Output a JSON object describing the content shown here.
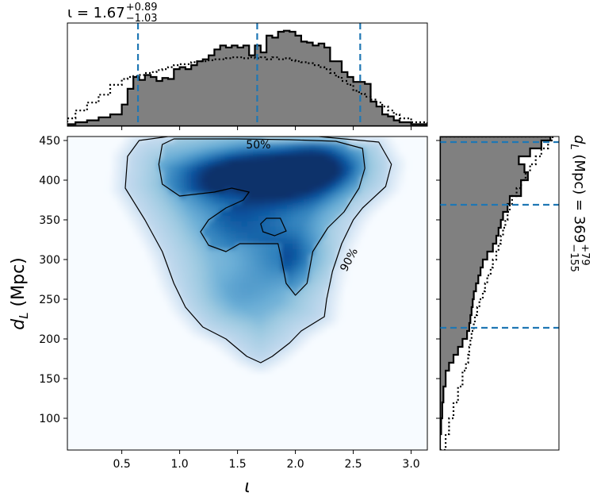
{
  "colors": {
    "hist_fill": "#808080",
    "median_line": "#1f77b4",
    "heat_low": "#f7fbff",
    "heat_high": "#08306b"
  },
  "chart_data": [
    {
      "type": "heatmap",
      "panel": "joint",
      "xlabel": "ι",
      "ylabel": "d_L (Mpc)",
      "xlim": [
        0.03,
        3.14
      ],
      "ylim": [
        60,
        455
      ],
      "xticks": [
        0.5,
        1.0,
        1.5,
        2.0,
        2.5,
        3.0
      ],
      "xtick_labels": [
        "0.5",
        "1.0",
        "1.5",
        "2.0",
        "2.5",
        "3.0"
      ],
      "yticks": [
        100,
        150,
        200,
        250,
        300,
        350,
        400,
        450
      ],
      "ytick_labels": [
        "100",
        "150",
        "200",
        "250",
        "300",
        "350",
        "400",
        "450"
      ],
      "colormap": "Blues",
      "density_peaks": [
        {
          "x": 2.2,
          "y": 422,
          "weight": 1.0
        },
        {
          "x": 1.3,
          "y": 400,
          "weight": 0.7
        },
        {
          "x": 1.65,
          "y": 415,
          "weight": 0.7
        },
        {
          "x": 1.9,
          "y": 395,
          "weight": 0.6
        },
        {
          "x": 1.95,
          "y": 305,
          "weight": 0.55
        },
        {
          "x": 1.5,
          "y": 345,
          "weight": 0.4
        },
        {
          "x": 1.55,
          "y": 260,
          "weight": 0.3
        }
      ],
      "contours": [
        {
          "label": "50%",
          "label_position": [
            1.68,
            445
          ],
          "points": [
            [
              1.1,
              452
            ],
            [
              1.5,
              452
            ],
            [
              1.95,
              451
            ],
            [
              2.35,
              449
            ],
            [
              2.58,
              440
            ],
            [
              2.6,
              415
            ],
            [
              2.55,
              390
            ],
            [
              2.42,
              360
            ],
            [
              2.28,
              340
            ],
            [
              2.15,
              310
            ],
            [
              2.1,
              270
            ],
            [
              2.0,
              255
            ],
            [
              1.92,
              270
            ],
            [
              1.88,
              300
            ],
            [
              1.85,
              320
            ],
            [
              1.7,
              320
            ],
            [
              1.52,
              320
            ],
            [
              1.4,
              310
            ],
            [
              1.25,
              318
            ],
            [
              1.18,
              335
            ],
            [
              1.25,
              350
            ],
            [
              1.4,
              365
            ],
            [
              1.55,
              375
            ],
            [
              1.6,
              385
            ],
            [
              1.45,
              390
            ],
            [
              1.3,
              385
            ],
            [
              1.0,
              380
            ],
            [
              0.85,
              395
            ],
            [
              0.82,
              420
            ],
            [
              0.85,
              445
            ],
            [
              0.95,
              452
            ],
            [
              1.1,
              452
            ]
          ],
          "island": [
            [
              1.72,
              335
            ],
            [
              1.82,
              330
            ],
            [
              1.92,
              336
            ],
            [
              1.87,
              352
            ],
            [
              1.75,
              352
            ],
            [
              1.7,
              345
            ],
            [
              1.72,
              335
            ]
          ]
        },
        {
          "label": "90%",
          "label_position": [
            2.46,
            300
          ],
          "points": [
            [
              0.9,
              455
            ],
            [
              1.6,
              455
            ],
            [
              2.2,
              455
            ],
            [
              2.72,
              448
            ],
            [
              2.83,
              420
            ],
            [
              2.78,
              392
            ],
            [
              2.58,
              365
            ],
            [
              2.5,
              350
            ],
            [
              2.4,
              320
            ],
            [
              2.32,
              285
            ],
            [
              2.27,
              250
            ],
            [
              2.25,
              228
            ],
            [
              2.05,
              210
            ],
            [
              1.95,
              195
            ],
            [
              1.8,
              178
            ],
            [
              1.7,
              170
            ],
            [
              1.58,
              178
            ],
            [
              1.4,
              200
            ],
            [
              1.2,
              215
            ],
            [
              1.05,
              240
            ],
            [
              0.95,
              270
            ],
            [
              0.85,
              310
            ],
            [
              0.7,
              350
            ],
            [
              0.53,
              390
            ],
            [
              0.55,
              430
            ],
            [
              0.65,
              450
            ],
            [
              0.9,
              455
            ]
          ]
        }
      ]
    },
    {
      "type": "area",
      "panel": "marginal-x",
      "title": "ι = 1.67",
      "title_sup": "+0.89",
      "title_sub": "−1.03",
      "xlim": [
        0.03,
        3.14
      ],
      "ylim": [
        0,
        1
      ],
      "bin_edges": [
        0.03,
        0.1,
        0.2,
        0.3,
        0.4,
        0.5,
        0.55,
        0.6,
        0.65,
        0.7,
        0.75,
        0.8,
        0.85,
        0.9,
        0.95,
        1.0,
        1.05,
        1.1,
        1.15,
        1.2,
        1.25,
        1.3,
        1.35,
        1.4,
        1.45,
        1.5,
        1.55,
        1.6,
        1.65,
        1.7,
        1.75,
        1.8,
        1.85,
        1.9,
        1.95,
        2.0,
        2.05,
        2.1,
        2.15,
        2.2,
        2.25,
        2.3,
        2.35,
        2.4,
        2.45,
        2.5,
        2.55,
        2.6,
        2.65,
        2.7,
        2.75,
        2.8,
        2.85,
        2.9,
        3.0,
        3.14
      ],
      "series": [
        {
          "style": "filled-step",
          "values": [
            0.02,
            0.04,
            0.06,
            0.09,
            0.12,
            0.22,
            0.38,
            0.5,
            0.47,
            0.52,
            0.5,
            0.46,
            0.49,
            0.48,
            0.58,
            0.6,
            0.58,
            0.62,
            0.66,
            0.68,
            0.72,
            0.78,
            0.82,
            0.8,
            0.82,
            0.8,
            0.82,
            0.72,
            0.82,
            0.75,
            0.92,
            0.9,
            0.96,
            0.97,
            0.96,
            0.92,
            0.86,
            0.85,
            0.82,
            0.84,
            0.8,
            0.66,
            0.66,
            0.55,
            0.5,
            0.45,
            0.45,
            0.43,
            0.25,
            0.2,
            0.12,
            0.1,
            0.06,
            0.04,
            0.02
          ]
        },
        {
          "style": "dotted-step",
          "values": [
            0.08,
            0.16,
            0.24,
            0.32,
            0.42,
            0.48,
            0.5,
            0.51,
            0.52,
            0.54,
            0.55,
            0.57,
            0.58,
            0.6,
            0.62,
            0.63,
            0.63,
            0.65,
            0.66,
            0.66,
            0.67,
            0.68,
            0.68,
            0.69,
            0.7,
            0.7,
            0.69,
            0.7,
            0.69,
            0.7,
            0.68,
            0.7,
            0.68,
            0.69,
            0.67,
            0.66,
            0.65,
            0.64,
            0.62,
            0.6,
            0.58,
            0.54,
            0.5,
            0.46,
            0.42,
            0.36,
            0.33,
            0.3,
            0.27,
            0.24,
            0.2,
            0.16,
            0.12,
            0.08,
            0.04
          ]
        }
      ],
      "quantile_lines": [
        0.64,
        1.67,
        2.56
      ]
    },
    {
      "type": "area",
      "panel": "marginal-y",
      "title": "d_L (Mpc) = 369",
      "title_sup": "+79",
      "title_sub": "−155",
      "ylim": [
        60,
        455
      ],
      "xlim": [
        0,
        1
      ],
      "bin_edges": [
        60,
        80,
        100,
        120,
        140,
        160,
        170,
        180,
        190,
        200,
        210,
        220,
        230,
        240,
        250,
        260,
        270,
        280,
        290,
        300,
        310,
        320,
        330,
        340,
        350,
        360,
        370,
        380,
        390,
        400,
        410,
        420,
        430,
        440,
        450,
        455
      ],
      "series": [
        {
          "style": "filled-step",
          "values": [
            0.0,
            0.01,
            0.02,
            0.03,
            0.05,
            0.08,
            0.12,
            0.16,
            0.2,
            0.24,
            0.26,
            0.27,
            0.28,
            0.29,
            0.3,
            0.32,
            0.34,
            0.36,
            0.38,
            0.42,
            0.47,
            0.5,
            0.52,
            0.54,
            0.56,
            0.6,
            0.62,
            0.72,
            0.72,
            0.78,
            0.75,
            0.7,
            0.8,
            0.9,
            0.98
          ]
        },
        {
          "style": "dotted-step",
          "values": [
            0.05,
            0.08,
            0.12,
            0.16,
            0.2,
            0.23,
            0.25,
            0.26,
            0.27,
            0.28,
            0.3,
            0.31,
            0.33,
            0.35,
            0.38,
            0.4,
            0.42,
            0.45,
            0.47,
            0.5,
            0.52,
            0.54,
            0.56,
            0.58,
            0.6,
            0.62,
            0.64,
            0.68,
            0.72,
            0.76,
            0.8,
            0.85,
            0.9,
            0.96,
            1.0
          ]
        }
      ],
      "quantile_lines": [
        214,
        369,
        448
      ]
    }
  ]
}
